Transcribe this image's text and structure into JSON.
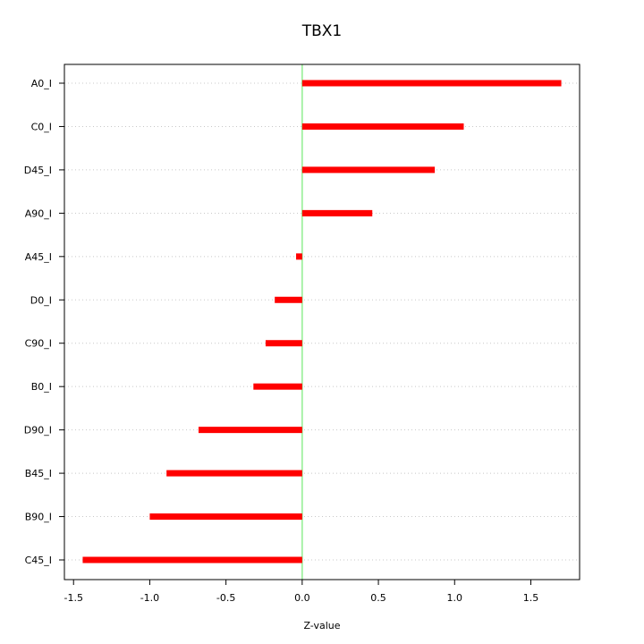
{
  "chart_data": {
    "type": "bar",
    "orientation": "horizontal",
    "title": "TBX1",
    "xlabel": "Z-value",
    "ylabel": "",
    "xlim": [
      -1.56,
      1.82
    ],
    "x_ticks": [
      -1.5,
      -1.0,
      -0.5,
      0.0,
      0.5,
      1.0,
      1.5
    ],
    "x_tick_labels": [
      "-1.5",
      "-1.0",
      "-0.5",
      "0.0",
      "0.5",
      "1.0",
      "1.5"
    ],
    "categories": [
      "A0_I",
      "C0_I",
      "D45_I",
      "A90_I",
      "A45_I",
      "D0_I",
      "C90_I",
      "B0_I",
      "D90_I",
      "B45_I",
      "B90_I",
      "C45_I"
    ],
    "values": [
      1.7,
      1.06,
      0.87,
      0.46,
      -0.04,
      -0.18,
      -0.24,
      -0.32,
      -0.68,
      -0.89,
      -1.0,
      -1.44
    ],
    "grid": "horizontal dotted",
    "legend": "none",
    "colors": {
      "bar": "#ff0000",
      "zero_line": "#90ee90",
      "grid": "#c8c8c8",
      "axis": "#000000"
    }
  }
}
